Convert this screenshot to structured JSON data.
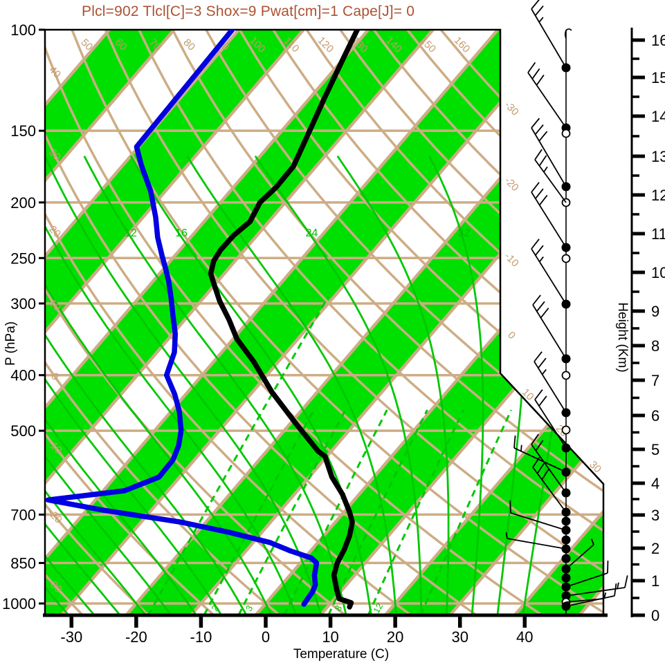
{
  "title": {
    "text": "Plcl=902 Tlcl[C]=3 Shox=9 Pwat[cm]=1 Cape[J]= 0",
    "color": "#AD5130"
  },
  "axes": {
    "pressure": {
      "label": "P (hPa)",
      "ticks": [
        100,
        150,
        200,
        250,
        300,
        400,
        500,
        700,
        850,
        1000
      ]
    },
    "temperature": {
      "label": "Temperature (C)",
      "ticks": [
        -30,
        -20,
        -10,
        0,
        10,
        20,
        30,
        40
      ]
    },
    "height": {
      "label": "Height (Km)",
      "ticks_km_y": [
        [
          0,
          890
        ],
        [
          1,
          840
        ],
        [
          2,
          793
        ],
        [
          3,
          745
        ],
        [
          4,
          699
        ],
        [
          5,
          650
        ],
        [
          6,
          601
        ],
        [
          7,
          550
        ],
        [
          8,
          500
        ],
        [
          9,
          450
        ],
        [
          10,
          394
        ],
        [
          11,
          338
        ],
        [
          12,
          282
        ],
        [
          13,
          226
        ],
        [
          14,
          168
        ],
        [
          15,
          112
        ],
        [
          16,
          58
        ]
      ]
    }
  },
  "chart_data": {
    "type": "line",
    "subtype": "skewt-logp-sounding",
    "parameters": {
      "Plcl": 902,
      "Tlcl_C": 3,
      "Shox": 9,
      "Pwat_cm": 1,
      "Cape_J": 0
    },
    "pressure_range_hpa": [
      100,
      1048
    ],
    "temperature_axis_range_c": [
      -34,
      52
    ],
    "series": [
      {
        "name": "temperature",
        "color": "#000000",
        "points_p_T": [
          [
            100,
            -61.7
          ],
          [
            112,
            -60.1
          ],
          [
            131,
            -57.8
          ],
          [
            150,
            -55.7
          ],
          [
            173,
            -53.5
          ],
          [
            188,
            -53.4
          ],
          [
            200,
            -53.9
          ],
          [
            216,
            -52.9
          ],
          [
            228,
            -53.6
          ],
          [
            242,
            -53.7
          ],
          [
            253,
            -53.3
          ],
          [
            266,
            -52.1
          ],
          [
            274,
            -50.8
          ],
          [
            297,
            -47.1
          ],
          [
            320,
            -43.2
          ],
          [
            346,
            -39.4
          ],
          [
            379,
            -33.8
          ],
          [
            428,
            -27.0
          ],
          [
            486,
            -19.1
          ],
          [
            543,
            -12.0
          ],
          [
            554,
            -10.3
          ],
          [
            602,
            -6.5
          ],
          [
            645,
            -2.6
          ],
          [
            692,
            0.8
          ],
          [
            721,
            2.6
          ],
          [
            762,
            4.0
          ],
          [
            805,
            5.0
          ],
          [
            850,
            5.7
          ],
          [
            893,
            6.8
          ],
          [
            943,
            9.0
          ],
          [
            981,
            10.7
          ],
          [
            997,
            13.1
          ],
          [
            1014,
            13.4
          ]
        ]
      },
      {
        "name": "dewpoint",
        "color": "#0000E0",
        "points_p_T": [
          [
            100,
            -81.0
          ],
          [
            160,
            -80.3
          ],
          [
            172,
            -77.2
          ],
          [
            191,
            -72.3
          ],
          [
            212,
            -68.1
          ],
          [
            230,
            -65.1
          ],
          [
            247,
            -62.1
          ],
          [
            261,
            -59.7
          ],
          [
            275,
            -57.5
          ],
          [
            295,
            -54.8
          ],
          [
            314,
            -52.5
          ],
          [
            339,
            -49.6
          ],
          [
            365,
            -47.3
          ],
          [
            400,
            -45.5
          ],
          [
            432,
            -41.7
          ],
          [
            463,
            -38.7
          ],
          [
            500,
            -35.9
          ],
          [
            531,
            -34.3
          ],
          [
            562,
            -33.3
          ],
          [
            602,
            -33.2
          ],
          [
            636,
            -36.7
          ],
          [
            660,
            -47.3
          ],
          [
            688,
            -37.3
          ],
          [
            721,
            -24.0
          ],
          [
            751,
            -15.2
          ],
          [
            783,
            -7.4
          ],
          [
            810,
            -3.1
          ],
          [
            833,
            1.0
          ],
          [
            850,
            2.5
          ],
          [
            893,
            3.8
          ],
          [
            928,
            5.2
          ],
          [
            954,
            5.7
          ],
          [
            975,
            5.8
          ],
          [
            1003,
            6.0
          ]
        ]
      }
    ],
    "background": {
      "band_fill_color": "#00E000",
      "tan_line_color": "#CDAD85",
      "tan_label_color": "#C49A6C",
      "green_line_color": "#00C800",
      "green_label_color": "#00BE00",
      "isotherm_step_c": 10,
      "isobar_lines_hpa": [
        150,
        200,
        250,
        300,
        400,
        500,
        700,
        850,
        1000
      ],
      "dry_adiabats_c": [
        -30,
        -20,
        -10,
        0,
        10,
        20,
        30,
        40,
        50,
        60,
        70,
        80,
        90,
        100,
        110,
        120,
        130,
        140,
        150,
        160
      ],
      "isotherm_labels_right_edge": [
        -30,
        -20,
        -10,
        0
      ],
      "isotherm_labels_diagonal_edge": [
        10,
        20,
        30
      ],
      "moist_adiabats_c": [
        -32,
        -28,
        -24,
        -20,
        -16,
        -12,
        -8,
        -4,
        0,
        4,
        8,
        12,
        16,
        20,
        24,
        28,
        32,
        36,
        40
      ],
      "moist_adiabat_labels": [
        12,
        16,
        24,
        32
      ],
      "mixing_ratio_lines_gkg": [
        1,
        2,
        3,
        5,
        8,
        12,
        20
      ],
      "mixing_ratio_labels_gkg": [
        2,
        3,
        8,
        12
      ]
    },
    "wind_barbs": {
      "staff_x": 818,
      "stations": [
        {
          "y": 45,
          "dot": "none",
          "curl": true
        },
        {
          "y": 98,
          "dot": "filled",
          "dx": -50,
          "dy": -85,
          "full": 2,
          "half": 1
        },
        {
          "y": 185,
          "dot": "filled",
          "dx": -55,
          "dy": -80,
          "full": 3,
          "half": 0
        },
        {
          "y": 193,
          "dot": "open"
        },
        {
          "y": 270,
          "dot": "filled",
          "dx": -50,
          "dy": -85,
          "full": 3,
          "half": 0
        },
        {
          "y": 293,
          "dot": "open",
          "dx": -45,
          "dy": -62,
          "full": 2,
          "half": 1
        },
        {
          "y": 358,
          "dot": "filled",
          "dx": -50,
          "dy": -80,
          "full": 3,
          "half": 0
        },
        {
          "y": 374,
          "dot": "open"
        },
        {
          "y": 440,
          "dot": "filled",
          "dx": -50,
          "dy": -80,
          "full": 2,
          "half": 1
        },
        {
          "y": 519,
          "dot": "filled",
          "dx": -48,
          "dy": -78,
          "full": 3,
          "half": 0
        },
        {
          "y": 543,
          "dot": "open"
        },
        {
          "y": 597,
          "dot": "filled",
          "dx": -46,
          "dy": -74,
          "full": 2,
          "half": 1
        },
        {
          "y": 622,
          "dot": "open"
        },
        {
          "y": 648,
          "dot": "filled",
          "dx": -45,
          "dy": -70,
          "full": 2,
          "half": 0
        },
        {
          "y": 683,
          "dot": "filled",
          "dx": -75,
          "dy": -35,
          "full": 1,
          "half": 1
        },
        {
          "y": 713,
          "dot": "filled",
          "dx": -50,
          "dy": -70,
          "full": 2,
          "half": 0
        },
        {
          "y": 741,
          "dot": "filled",
          "dx": -48,
          "dy": -65,
          "full": 3,
          "half": 0
        },
        {
          "y": 754,
          "dot": "filled"
        },
        {
          "y": 767,
          "dot": "filled",
          "dx": -80,
          "dy": -25,
          "full": 1,
          "half": 0
        },
        {
          "y": 781,
          "dot": "filled"
        },
        {
          "y": 794,
          "dot": "filled",
          "dx": -85,
          "dy": -15,
          "full": 0,
          "half": 1
        },
        {
          "y": 808,
          "dot": "filled"
        },
        {
          "y": 823,
          "dot": "filled",
          "dx": 40,
          "dy": -35,
          "full": 0,
          "half": 1
        },
        {
          "y": 836,
          "dot": "filled"
        },
        {
          "y": 849,
          "dot": "filled",
          "dx": 60,
          "dy": -20,
          "full": 1,
          "half": 0
        },
        {
          "y": 862,
          "dot": "filled",
          "dx": 85,
          "dy": -12,
          "full": 1,
          "half": 1
        },
        {
          "y": 871,
          "dot": "open",
          "dx": 55,
          "dy": -5,
          "full": 0,
          "half": 1
        },
        {
          "y": 877,
          "dot": "filled",
          "dx": 70,
          "dy": -15,
          "full": 1,
          "half": 0
        }
      ]
    }
  }
}
